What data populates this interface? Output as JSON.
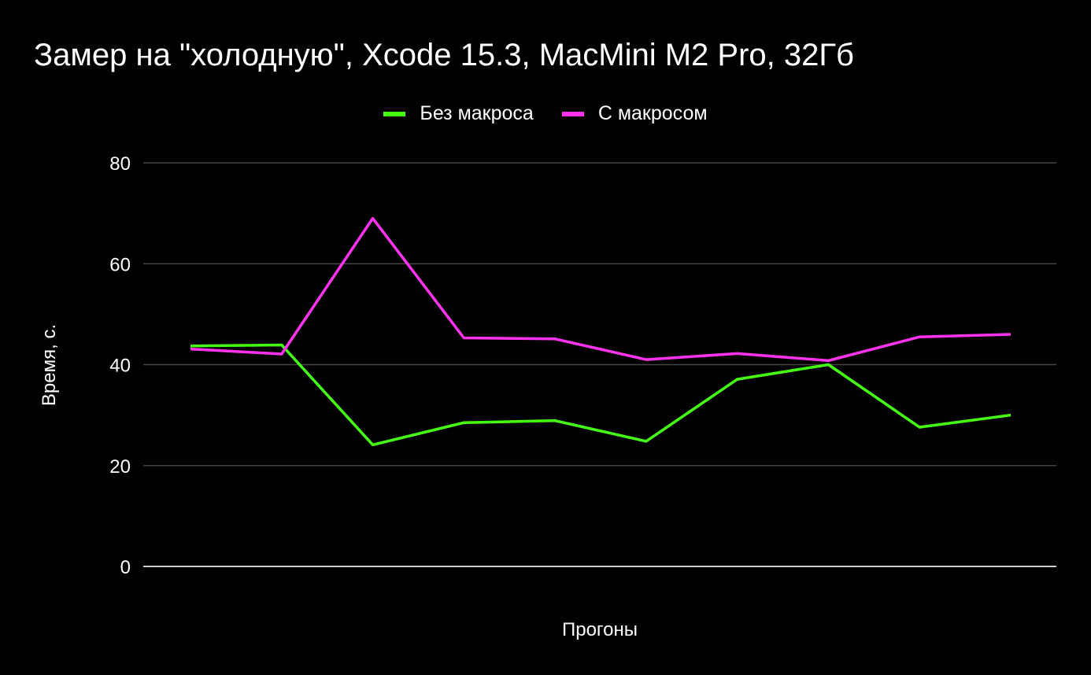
{
  "chart_data": {
    "type": "line",
    "title": "Замер на \"холодную\", Xcode 15.3, MacMini M2 Pro, 32Гб",
    "xlabel": "Прогоны",
    "ylabel": "Время, с.",
    "ylim": [
      0,
      80
    ],
    "yticks": [
      "0",
      "20",
      "40",
      "60",
      "80"
    ],
    "grid": true,
    "legend_position": "top",
    "x": [
      1,
      2,
      3,
      4,
      5,
      6,
      7,
      8,
      9,
      10
    ],
    "series": [
      {
        "name": "Без макроса",
        "color": "#44ff11",
        "values": [
          43.7,
          43.9,
          24.1,
          28.5,
          28.9,
          24.8,
          37.1,
          40.0,
          27.6,
          30.0
        ]
      },
      {
        "name": "С макросом",
        "color": "#ff33ee",
        "values": [
          43.1,
          42.1,
          69.0,
          45.3,
          45.1,
          41.0,
          42.2,
          40.8,
          45.5,
          46.0
        ]
      }
    ]
  }
}
